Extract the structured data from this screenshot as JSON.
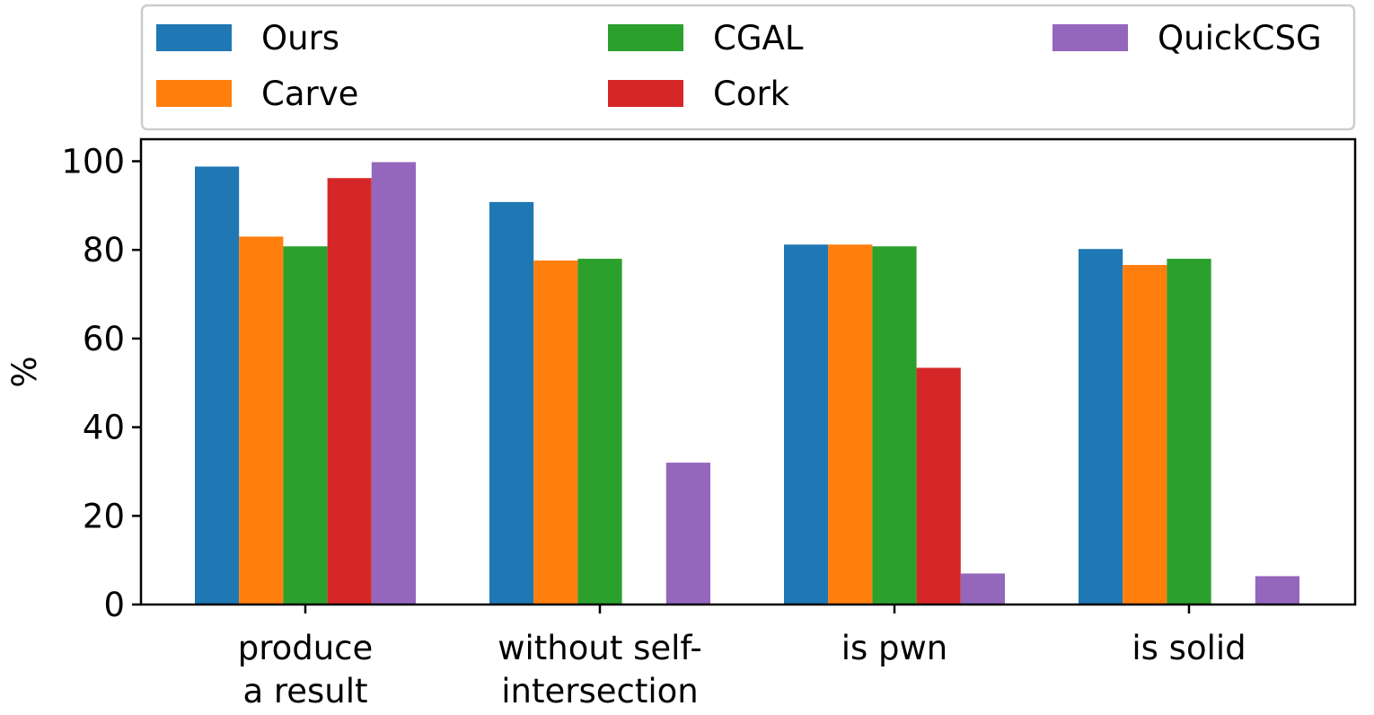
{
  "chart_data": {
    "type": "bar",
    "categories": [
      [
        "produce",
        "a result"
      ],
      [
        "without self-",
        "intersection"
      ],
      [
        "is pwn"
      ],
      [
        "is solid"
      ]
    ],
    "series": [
      {
        "name": "Ours",
        "color": "#1f77b4",
        "values": [
          98.8,
          90.8,
          81.2,
          80.2
        ]
      },
      {
        "name": "Carve",
        "color": "#ff7f0e",
        "values": [
          83.0,
          77.6,
          81.2,
          76.6
        ]
      },
      {
        "name": "CGAL",
        "color": "#2ca02c",
        "values": [
          80.8,
          78.0,
          80.8,
          78.0
        ]
      },
      {
        "name": "Cork",
        "color": "#d62728",
        "values": [
          96.2,
          0,
          53.4,
          0
        ]
      },
      {
        "name": "QuickCSG",
        "color": "#9467bd",
        "values": [
          99.8,
          32.0,
          7.0,
          6.4
        ]
      }
    ],
    "ylabel": "%",
    "ylim": [
      0,
      104
    ],
    "yticks": [
      0,
      20,
      40,
      60,
      80,
      100
    ],
    "grid": false,
    "legend": {
      "placement": "top",
      "columns": 3
    }
  }
}
